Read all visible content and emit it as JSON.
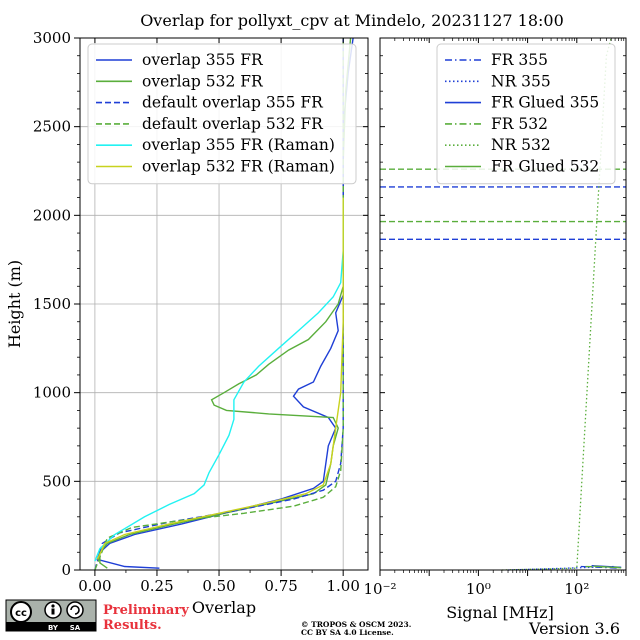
{
  "title": "Overlap for pollyxt_cpv at Mindelo, 20231127 18:00",
  "version": "Version 3.6",
  "preliminary": [
    "Preliminary",
    "Results."
  ],
  "copyright": [
    "© TROPOS & OSCM 2023.",
    "CC BY SA 4.0 License."
  ],
  "cc_badge": {
    "cc": "cc",
    "by": "BY",
    "sa": "SA"
  },
  "colors": {
    "blue": "#1f3fd6",
    "green": "#5aae3c",
    "cyan": "#22f2f2",
    "yellow": "#c8d21e",
    "red": "#e8323c"
  },
  "chart_data": [
    {
      "type": "line",
      "xlabel": "Overlap",
      "ylabel": "Height (m)",
      "xlim": [
        -0.06,
        1.1
      ],
      "ylim": [
        0,
        3000
      ],
      "xticks": [
        0.0,
        0.25,
        0.5,
        0.75,
        1.0
      ],
      "xtick_labels": [
        "0.00",
        "0.25",
        "0.50",
        "0.75",
        "1.00"
      ],
      "yticks": [
        0,
        500,
        1000,
        1500,
        2000,
        2500,
        3000
      ],
      "ytick_labels": [
        "0",
        "500",
        "1000",
        "1500",
        "2000",
        "2500",
        "3000"
      ],
      "grid": true,
      "legend_position": "top-left",
      "series": [
        {
          "name": "overlap 355 FR",
          "color": "#1f3fd6",
          "dash": "solid",
          "points": [
            [
              0.26,
              10
            ],
            [
              0.12,
              20
            ],
            [
              0.01,
              60
            ],
            [
              0.02,
              100
            ],
            [
              0.06,
              150
            ],
            [
              0.16,
              200
            ],
            [
              0.35,
              260
            ],
            [
              0.55,
              330
            ],
            [
              0.75,
              400
            ],
            [
              0.88,
              460
            ],
            [
              0.92,
              500
            ],
            [
              0.93,
              600
            ],
            [
              0.94,
              700
            ],
            [
              0.97,
              800
            ],
            [
              0.94,
              860
            ],
            [
              0.84,
              920
            ],
            [
              0.8,
              980
            ],
            [
              0.82,
              1020
            ],
            [
              0.88,
              1060
            ],
            [
              0.91,
              1150
            ],
            [
              0.95,
              1250
            ],
            [
              0.98,
              1350
            ],
            [
              0.97,
              1450
            ],
            [
              1.0,
              1550
            ],
            [
              1.0,
              1800
            ],
            [
              1.0,
              2100
            ],
            [
              1.0,
              2500
            ],
            [
              1.02,
              2800
            ],
            [
              1.04,
              3000
            ]
          ]
        },
        {
          "name": "overlap 532 FR",
          "color": "#5aae3c",
          "dash": "solid",
          "points": [
            [
              0.05,
              10
            ],
            [
              0.02,
              40
            ],
            [
              0.02,
              100
            ],
            [
              0.05,
              150
            ],
            [
              0.14,
              200
            ],
            [
              0.32,
              260
            ],
            [
              0.52,
              320
            ],
            [
              0.72,
              380
            ],
            [
              0.88,
              430
            ],
            [
              0.93,
              480
            ],
            [
              0.95,
              600
            ],
            [
              0.96,
              700
            ],
            [
              0.98,
              800
            ],
            [
              0.96,
              860
            ],
            [
              0.7,
              880
            ],
            [
              0.53,
              900
            ],
            [
              0.48,
              930
            ],
            [
              0.47,
              960
            ],
            [
              0.52,
              1000
            ],
            [
              0.58,
              1050
            ],
            [
              0.65,
              1100
            ],
            [
              0.7,
              1160
            ],
            [
              0.78,
              1240
            ],
            [
              0.86,
              1300
            ],
            [
              0.93,
              1400
            ],
            [
              0.98,
              1500
            ],
            [
              1.0,
              1600
            ],
            [
              1.0,
              1900
            ],
            [
              1.0,
              2300
            ],
            [
              1.01,
              2700
            ],
            [
              1.03,
              3000
            ]
          ]
        },
        {
          "name": "default overlap 355 FR",
          "color": "#1f3fd6",
          "dash": "dashed",
          "points": [
            [
              0.0,
              0
            ],
            [
              0.03,
              150
            ],
            [
              0.1,
              210
            ],
            [
              0.3,
              270
            ],
            [
              0.55,
              330
            ],
            [
              0.8,
              400
            ],
            [
              0.92,
              450
            ],
            [
              0.97,
              500
            ],
            [
              0.99,
              600
            ],
            [
              1.0,
              800
            ],
            [
              1.0,
              3000
            ]
          ]
        },
        {
          "name": "default overlap 532 FR",
          "color": "#5aae3c",
          "dash": "dashed",
          "points": [
            [
              0.0,
              0
            ],
            [
              0.05,
              180
            ],
            [
              0.15,
              240
            ],
            [
              0.35,
              280
            ],
            [
              0.6,
              320
            ],
            [
              0.8,
              360
            ],
            [
              0.92,
              410
            ],
            [
              0.97,
              470
            ],
            [
              0.99,
              560
            ],
            [
              1.0,
              800
            ],
            [
              1.0,
              3000
            ]
          ]
        },
        {
          "name": "overlap 355 FR (Raman)",
          "color": "#22f2f2",
          "dash": "solid",
          "points": [
            [
              0.0,
              50
            ],
            [
              0.02,
              120
            ],
            [
              0.08,
              200
            ],
            [
              0.2,
              300
            ],
            [
              0.3,
              370
            ],
            [
              0.4,
              430
            ],
            [
              0.44,
              480
            ],
            [
              0.46,
              550
            ],
            [
              0.5,
              650
            ],
            [
              0.54,
              760
            ],
            [
              0.56,
              850
            ],
            [
              0.56,
              960
            ],
            [
              0.6,
              1060
            ],
            [
              0.66,
              1150
            ],
            [
              0.74,
              1250
            ],
            [
              0.82,
              1350
            ],
            [
              0.9,
              1450
            ],
            [
              0.96,
              1540
            ],
            [
              0.99,
              1620
            ],
            [
              1.0,
              1800
            ],
            [
              1.0,
              2100
            ]
          ]
        },
        {
          "name": "overlap 532 FR (Raman)",
          "color": "#c8d21e",
          "dash": "solid",
          "points": [
            [
              0.01,
              60
            ],
            [
              0.04,
              150
            ],
            [
              0.12,
              200
            ],
            [
              0.3,
              260
            ],
            [
              0.5,
              320
            ],
            [
              0.7,
              380
            ],
            [
              0.85,
              430
            ],
            [
              0.92,
              480
            ],
            [
              0.95,
              600
            ],
            [
              0.97,
              800
            ],
            [
              0.99,
              1000
            ],
            [
              1.0,
              1400
            ],
            [
              1.0,
              2100
            ]
          ]
        }
      ]
    },
    {
      "type": "line",
      "xlabel": "Signal [MHz]",
      "ylabel": "",
      "xscale": "log",
      "xlim": [
        0.01,
        1000
      ],
      "ylim": [
        0,
        3000
      ],
      "xticks": [
        0.01,
        1,
        100
      ],
      "xtick_labels": [
        "10⁻²",
        "10⁰",
        "10²"
      ],
      "grid": false,
      "legend_position": "top-right",
      "hlines": [
        {
          "y": 2260,
          "color": "#5aae3c",
          "dash": "dashed"
        },
        {
          "y": 2160,
          "color": "#1f3fd6",
          "dash": "dashed"
        },
        {
          "y": 1965,
          "color": "#5aae3c",
          "dash": "dashed"
        },
        {
          "y": 1865,
          "color": "#1f3fd6",
          "dash": "dashed"
        }
      ],
      "series": [
        {
          "name": "FR 355",
          "color": "#1f3fd6",
          "dash": "dashdot",
          "points": [
            [
              120,
              20
            ],
            [
              300,
              15
            ],
            [
              700,
              10
            ]
          ]
        },
        {
          "name": "NR 355",
          "color": "#1f3fd6",
          "dash": "dotted",
          "points": [
            [
              4,
              0
            ],
            [
              60,
              10
            ],
            [
              600,
              20
            ]
          ]
        },
        {
          "name": "FR Glued 355",
          "color": "#1f3fd6",
          "dash": "solid",
          "points": [
            [
              200,
              25
            ],
            [
              800,
              15
            ]
          ]
        },
        {
          "name": "FR 532",
          "color": "#5aae3c",
          "dash": "dashdot",
          "points": [
            [
              150,
              20
            ],
            [
              700,
              15
            ]
          ]
        },
        {
          "name": "NR 532",
          "color": "#5aae3c",
          "dash": "dotted",
          "points": [
            [
              3,
              0
            ],
            [
              100,
              10
            ],
            [
              400,
              2900
            ],
            [
              500,
              3000
            ]
          ]
        },
        {
          "name": "FR Glued 532",
          "color": "#5aae3c",
          "dash": "solid",
          "points": [
            [
              220,
              22
            ],
            [
              800,
              12
            ]
          ]
        }
      ]
    }
  ]
}
